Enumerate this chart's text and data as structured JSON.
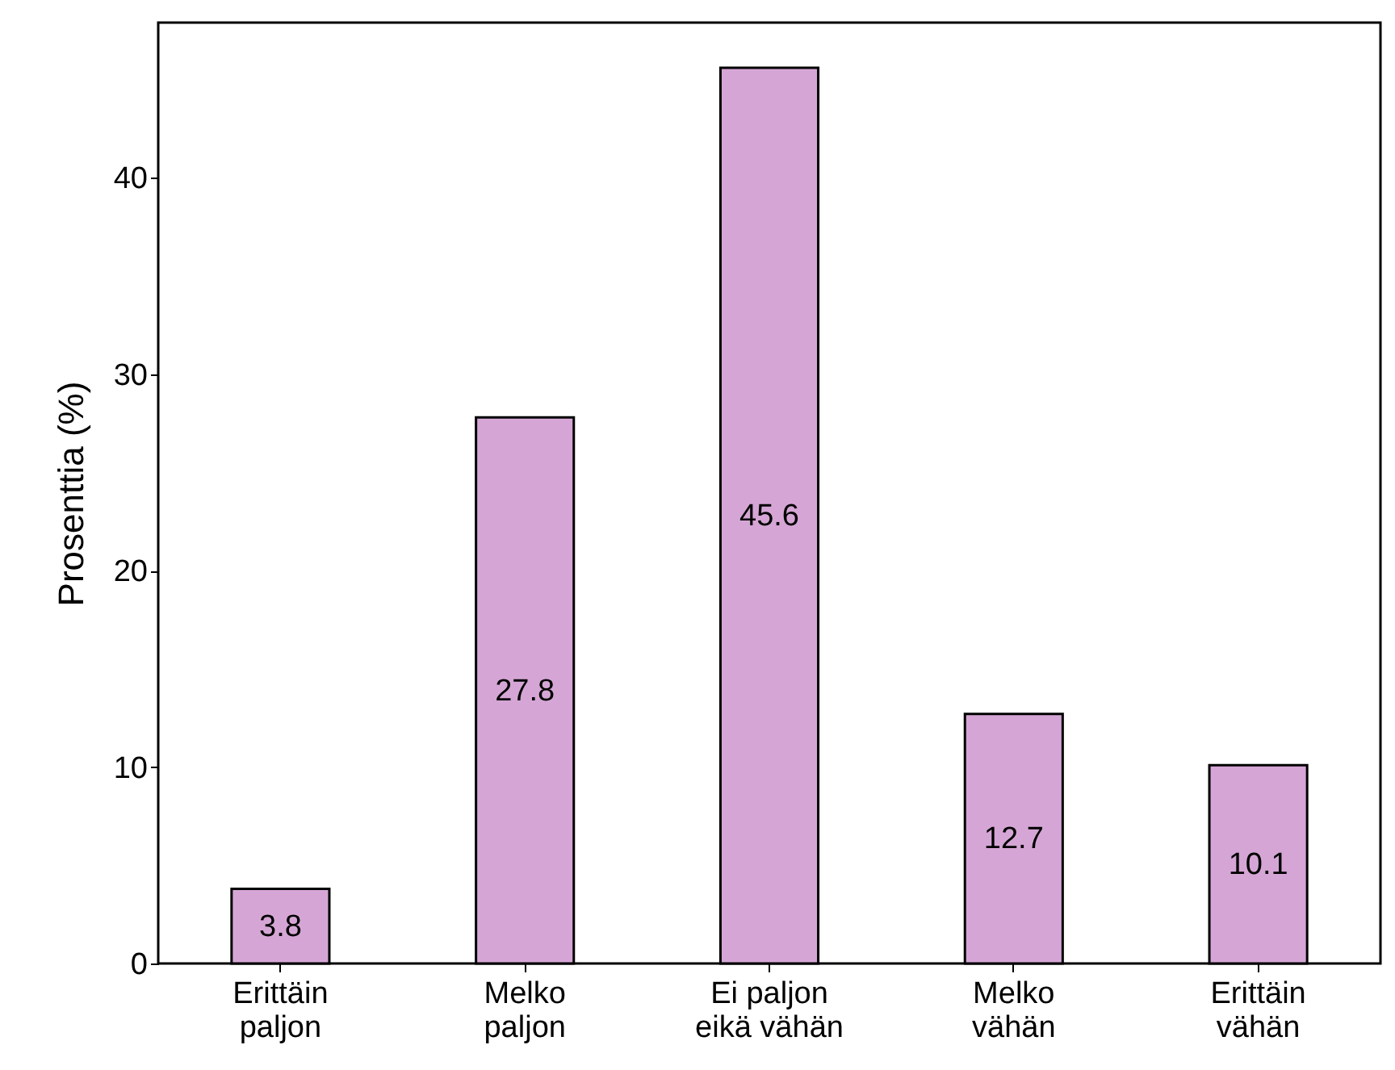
{
  "chart_data": {
    "type": "bar",
    "ylabel": "Prosenttia (%)",
    "categories": [
      "Erittäin\npaljon",
      "Melko\npaljon",
      "Ei paljon\neikä vähän",
      "Melko\nvähän",
      "Erittäin\nvähän"
    ],
    "values": [
      3.8,
      27.8,
      45.6,
      12.7,
      10.1
    ],
    "color": "#d5a6d5",
    "ylim": [
      0,
      47.9
    ],
    "yticks": [
      0,
      10,
      20,
      30,
      40
    ],
    "grid": false,
    "data_labels": true
  }
}
